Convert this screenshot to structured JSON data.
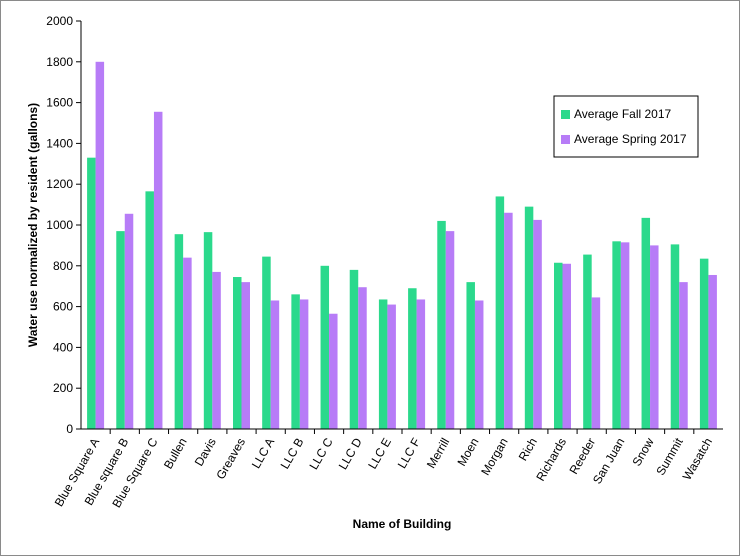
{
  "chart_data": {
    "type": "bar",
    "title": "",
    "xlabel": "Name of Building",
    "ylabel": "Water use normalized by resident (gallons)",
    "ylim": [
      0,
      2000
    ],
    "yticks": [
      0,
      200,
      400,
      600,
      800,
      1000,
      1200,
      1400,
      1600,
      1800,
      2000
    ],
    "grid": false,
    "legend_position": "top-right",
    "categories": [
      "Blue Square A",
      "Blue square B",
      "Blue Square C",
      "Bullen",
      "Davis",
      "Greaves",
      "LLC A",
      "LLC B",
      "LLC C",
      "LLC D",
      "LLC E",
      "LLC F",
      "Merrill",
      "Moen",
      "Morgan",
      "Rich",
      "Richards",
      "Reeder",
      "San Juan",
      "Snow",
      "Summit",
      "Wasatch"
    ],
    "series": [
      {
        "name": "Average Fall 2017",
        "color": "#2bd98c",
        "values": [
          1330,
          970,
          1165,
          955,
          965,
          745,
          845,
          660,
          800,
          780,
          635,
          690,
          1020,
          720,
          1140,
          1090,
          815,
          855,
          920,
          1035,
          905,
          835
        ]
      },
      {
        "name": "Average Spring 2017",
        "color": "#b77cf7",
        "values": [
          1800,
          1055,
          1555,
          840,
          770,
          720,
          630,
          635,
          565,
          695,
          610,
          635,
          970,
          630,
          1060,
          1025,
          810,
          645,
          915,
          900,
          720,
          755
        ]
      }
    ]
  }
}
